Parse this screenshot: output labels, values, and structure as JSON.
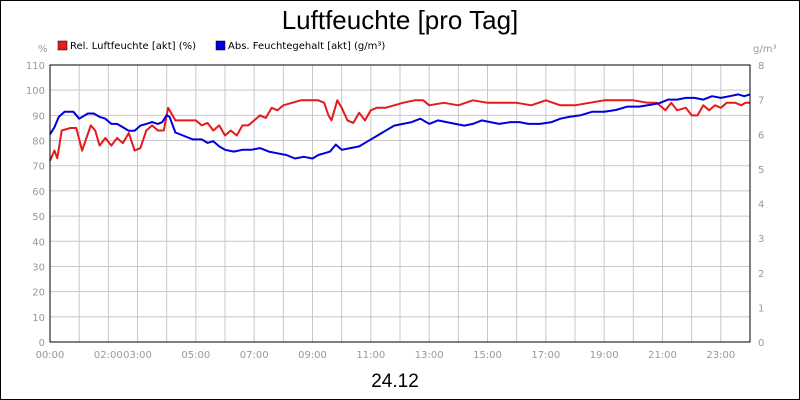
{
  "chart_data": {
    "type": "line",
    "title": "Luftfeuchte [pro Tag]",
    "date_label": "24.12",
    "y_left_unit": "%",
    "y_right_unit": "g/m³",
    "x_range_hours": [
      0,
      24
    ],
    "x_tick_labels": [
      {
        "h": 0,
        "label": "00:00"
      },
      {
        "h": 2,
        "label": "02:00"
      },
      {
        "h": 3,
        "label": "03:00"
      },
      {
        "h": 5,
        "label": "05:00"
      },
      {
        "h": 7,
        "label": "07:00"
      },
      {
        "h": 9,
        "label": "09:00"
      },
      {
        "h": 11,
        "label": "11:00"
      },
      {
        "h": 13,
        "label": "13:00"
      },
      {
        "h": 15,
        "label": "15:00"
      },
      {
        "h": 17,
        "label": "17:00"
      },
      {
        "h": 19,
        "label": "19:00"
      },
      {
        "h": 21,
        "label": "21:00"
      },
      {
        "h": 23,
        "label": "23:00"
      }
    ],
    "y_left": {
      "min": 0,
      "max": 110,
      "ticks": [
        0,
        10,
        20,
        30,
        40,
        50,
        60,
        70,
        80,
        90,
        100,
        110
      ]
    },
    "y_right": {
      "min": 0,
      "max": 8,
      "ticks": [
        0,
        1,
        2,
        3,
        4,
        5,
        6,
        7,
        8
      ]
    },
    "grid": true,
    "legend_position": "top-left",
    "series": [
      {
        "name": "Rel. Luftfeuchte [akt] (%)",
        "axis": "left",
        "color": "#e41a1c",
        "points": [
          [
            0.0,
            72
          ],
          [
            0.15,
            76
          ],
          [
            0.25,
            73
          ],
          [
            0.4,
            84
          ],
          [
            0.7,
            85
          ],
          [
            0.9,
            85
          ],
          [
            1.1,
            76
          ],
          [
            1.4,
            86
          ],
          [
            1.55,
            84
          ],
          [
            1.7,
            78
          ],
          [
            1.9,
            81
          ],
          [
            2.1,
            78
          ],
          [
            2.3,
            81
          ],
          [
            2.5,
            79
          ],
          [
            2.7,
            83
          ],
          [
            2.9,
            76
          ],
          [
            3.1,
            77
          ],
          [
            3.3,
            84
          ],
          [
            3.5,
            86
          ],
          [
            3.7,
            84
          ],
          [
            3.9,
            84
          ],
          [
            4.05,
            93
          ],
          [
            4.2,
            90
          ],
          [
            4.3,
            88
          ],
          [
            4.6,
            88
          ],
          [
            5.0,
            88
          ],
          [
            5.2,
            86
          ],
          [
            5.4,
            87
          ],
          [
            5.6,
            84
          ],
          [
            5.8,
            86
          ],
          [
            6.0,
            82
          ],
          [
            6.2,
            84
          ],
          [
            6.4,
            82
          ],
          [
            6.6,
            86
          ],
          [
            6.8,
            86
          ],
          [
            7.0,
            88
          ],
          [
            7.2,
            90
          ],
          [
            7.4,
            89
          ],
          [
            7.6,
            93
          ],
          [
            7.8,
            92
          ],
          [
            8.0,
            94
          ],
          [
            8.3,
            95
          ],
          [
            8.6,
            96
          ],
          [
            9.0,
            96
          ],
          [
            9.2,
            96
          ],
          [
            9.4,
            95
          ],
          [
            9.55,
            90
          ],
          [
            9.65,
            88
          ],
          [
            9.75,
            92
          ],
          [
            9.85,
            96
          ],
          [
            10.0,
            93
          ],
          [
            10.2,
            88
          ],
          [
            10.4,
            87
          ],
          [
            10.6,
            91
          ],
          [
            10.8,
            88
          ],
          [
            11.0,
            92
          ],
          [
            11.2,
            93
          ],
          [
            11.5,
            93
          ],
          [
            11.8,
            94
          ],
          [
            12.1,
            95
          ],
          [
            12.5,
            96
          ],
          [
            12.8,
            96
          ],
          [
            13.0,
            94
          ],
          [
            13.5,
            95
          ],
          [
            14.0,
            94
          ],
          [
            14.5,
            96
          ],
          [
            15.0,
            95
          ],
          [
            15.5,
            95
          ],
          [
            16.0,
            95
          ],
          [
            16.5,
            94
          ],
          [
            17.0,
            96
          ],
          [
            17.5,
            94
          ],
          [
            18.0,
            94
          ],
          [
            18.5,
            95
          ],
          [
            19.0,
            96
          ],
          [
            19.5,
            96
          ],
          [
            20.0,
            96
          ],
          [
            20.5,
            95
          ],
          [
            20.8,
            95
          ],
          [
            21.1,
            92
          ],
          [
            21.3,
            95
          ],
          [
            21.5,
            92
          ],
          [
            21.8,
            93
          ],
          [
            22.0,
            90
          ],
          [
            22.2,
            90
          ],
          [
            22.4,
            94
          ],
          [
            22.6,
            92
          ],
          [
            22.8,
            94
          ],
          [
            23.0,
            93
          ],
          [
            23.2,
            95
          ],
          [
            23.5,
            95
          ],
          [
            23.7,
            94
          ],
          [
            23.85,
            95
          ],
          [
            24.0,
            95
          ]
        ]
      },
      {
        "name": "Abs. Feuchtegehalt [akt] (g/m³)",
        "axis": "right",
        "color": "#0000dd",
        "points": [
          [
            0.0,
            6.0
          ],
          [
            0.15,
            6.2
          ],
          [
            0.3,
            6.5
          ],
          [
            0.5,
            6.65
          ],
          [
            0.8,
            6.65
          ],
          [
            1.0,
            6.45
          ],
          [
            1.3,
            6.6
          ],
          [
            1.5,
            6.6
          ],
          [
            1.7,
            6.5
          ],
          [
            1.9,
            6.45
          ],
          [
            2.1,
            6.3
          ],
          [
            2.3,
            6.3
          ],
          [
            2.5,
            6.2
          ],
          [
            2.7,
            6.1
          ],
          [
            2.9,
            6.1
          ],
          [
            3.1,
            6.25
          ],
          [
            3.3,
            6.3
          ],
          [
            3.5,
            6.35
          ],
          [
            3.7,
            6.3
          ],
          [
            3.85,
            6.35
          ],
          [
            4.0,
            6.55
          ],
          [
            4.1,
            6.5
          ],
          [
            4.3,
            6.05
          ],
          [
            4.6,
            5.95
          ],
          [
            4.9,
            5.85
          ],
          [
            5.2,
            5.85
          ],
          [
            5.4,
            5.75
          ],
          [
            5.6,
            5.8
          ],
          [
            5.8,
            5.65
          ],
          [
            6.0,
            5.55
          ],
          [
            6.3,
            5.5
          ],
          [
            6.6,
            5.55
          ],
          [
            6.9,
            5.55
          ],
          [
            7.2,
            5.6
          ],
          [
            7.5,
            5.5
          ],
          [
            7.8,
            5.45
          ],
          [
            8.1,
            5.4
          ],
          [
            8.4,
            5.3
          ],
          [
            8.7,
            5.35
          ],
          [
            9.0,
            5.3
          ],
          [
            9.2,
            5.4
          ],
          [
            9.4,
            5.45
          ],
          [
            9.6,
            5.5
          ],
          [
            9.8,
            5.7
          ],
          [
            10.0,
            5.55
          ],
          [
            10.3,
            5.6
          ],
          [
            10.6,
            5.65
          ],
          [
            10.9,
            5.8
          ],
          [
            11.2,
            5.95
          ],
          [
            11.5,
            6.1
          ],
          [
            11.8,
            6.25
          ],
          [
            12.1,
            6.3
          ],
          [
            12.4,
            6.35
          ],
          [
            12.7,
            6.45
          ],
          [
            13.0,
            6.3
          ],
          [
            13.3,
            6.4
          ],
          [
            13.6,
            6.35
          ],
          [
            13.9,
            6.3
          ],
          [
            14.2,
            6.25
          ],
          [
            14.5,
            6.3
          ],
          [
            14.8,
            6.4
          ],
          [
            15.1,
            6.35
          ],
          [
            15.4,
            6.3
          ],
          [
            15.8,
            6.35
          ],
          [
            16.1,
            6.35
          ],
          [
            16.4,
            6.3
          ],
          [
            16.8,
            6.3
          ],
          [
            17.2,
            6.35
          ],
          [
            17.5,
            6.45
          ],
          [
            17.8,
            6.5
          ],
          [
            18.2,
            6.55
          ],
          [
            18.6,
            6.65
          ],
          [
            19.0,
            6.65
          ],
          [
            19.4,
            6.7
          ],
          [
            19.8,
            6.8
          ],
          [
            20.2,
            6.8
          ],
          [
            20.6,
            6.85
          ],
          [
            20.9,
            6.9
          ],
          [
            21.2,
            7.0
          ],
          [
            21.5,
            7.0
          ],
          [
            21.8,
            7.05
          ],
          [
            22.1,
            7.05
          ],
          [
            22.4,
            7.0
          ],
          [
            22.7,
            7.1
          ],
          [
            23.0,
            7.05
          ],
          [
            23.3,
            7.1
          ],
          [
            23.6,
            7.15
          ],
          [
            23.8,
            7.1
          ],
          [
            24.0,
            7.15
          ]
        ]
      }
    ]
  }
}
